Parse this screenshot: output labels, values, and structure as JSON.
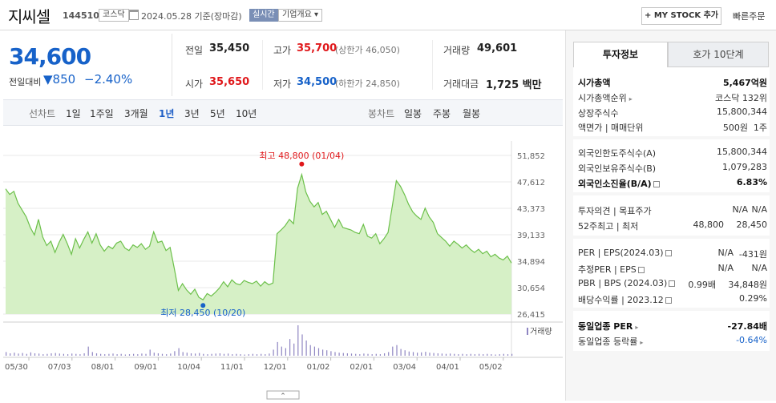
{
  "header": {
    "company_name": "지씨셀",
    "code": "144510",
    "market": "코스닥",
    "date_text": "2024.05.28 기준(장마감)",
    "live_label": "실시간",
    "overview_label": "기업개요 ▾",
    "mystock_label": "+ MY STOCK 추가",
    "quick_order_label": "빠른주문"
  },
  "price": {
    "current": "34,600",
    "change_label": "전일대비",
    "change_value": "▼850",
    "change_pct": "−2.40%",
    "down_color": "#1762c9",
    "up_color": "#e0181b"
  },
  "quote": {
    "prev_close_label": "전일",
    "prev_close": "35,450",
    "high_label": "고가",
    "high": "35,700",
    "high_limit": "(상한가 46,050)",
    "volume_label": "거래량",
    "volume": "49,601",
    "open_label": "시가",
    "open": "35,650",
    "low_label": "저가",
    "low": "34,500",
    "low_limit": "(하한가 24,850)",
    "trade_value_label": "거래대금",
    "trade_value": "1,725 백만"
  },
  "tabs": {
    "line_label": "선차트",
    "periods": [
      "1일",
      "1주일",
      "3개월",
      "1년",
      "3년",
      "5년",
      "10년"
    ],
    "active_period": "1년",
    "candle_label": "봉차트",
    "candles": [
      "일봉",
      "주봉",
      "월봉"
    ]
  },
  "chart_data": {
    "type": "area",
    "x_ticks": [
      "05/30",
      "07/03",
      "08/01",
      "09/01",
      "10/04",
      "11/01",
      "12/01",
      "01/02",
      "02/01",
      "03/04",
      "04/01",
      "05/02"
    ],
    "y_ticks": [
      51852,
      47612,
      43373,
      39133,
      34894,
      30654,
      26415
    ],
    "ylim": [
      26415,
      51852
    ],
    "high_note": "최고 48,800 (01/04)",
    "low_note": "최저 28,450 (10/20)",
    "volume_label": "거래량",
    "values": [
      46500,
      45600,
      46100,
      44200,
      43100,
      42000,
      40300,
      39100,
      41600,
      38800,
      37400,
      38100,
      36300,
      37900,
      39200,
      37700,
      36000,
      38500,
      37000,
      38400,
      39600,
      37800,
      39300,
      37500,
      36500,
      37300,
      36900,
      37800,
      38100,
      37000,
      36600,
      37500,
      37100,
      37700,
      36800,
      37300,
      39600,
      37900,
      38100,
      36600,
      37100,
      33800,
      30200,
      31300,
      30300,
      29600,
      30400,
      29100,
      28700,
      29700,
      29300,
      29900,
      30600,
      31600,
      30800,
      31900,
      31300,
      31100,
      31800,
      31500,
      31300,
      31700,
      30900,
      31600,
      31100,
      31400,
      39300,
      39900,
      40600,
      41600,
      40900,
      46600,
      48800,
      46000,
      44500,
      43600,
      44300,
      42400,
      42900,
      41600,
      40300,
      41600,
      40300,
      40100,
      39900,
      39500,
      39300,
      40800,
      38900,
      38600,
      39300,
      37700,
      38500,
      39500,
      43600,
      47800,
      46900,
      45600,
      44000,
      42800,
      42100,
      41600,
      43400,
      42000,
      41100,
      39300,
      38700,
      38100,
      37300,
      38100,
      37600,
      37000,
      37500,
      36800,
      36300,
      36800,
      36100,
      36500,
      35600,
      36000,
      35400,
      35100,
      35700,
      34600
    ],
    "volumes": [
      0.12,
      0.08,
      0.1,
      0.07,
      0.09,
      0.06,
      0.11,
      0.08,
      0.07,
      0.05,
      0.06,
      0.08,
      0.09,
      0.07,
      0.06,
      0.05,
      0.07,
      0.06,
      0.05,
      0.08,
      0.3,
      0.12,
      0.08,
      0.06,
      0.05,
      0.06,
      0.07,
      0.05,
      0.06,
      0.04,
      0.05,
      0.06,
      0.05,
      0.07,
      0.06,
      0.2,
      0.1,
      0.08,
      0.06,
      0.05,
      0.07,
      0.15,
      0.25,
      0.12,
      0.1,
      0.08,
      0.07,
      0.09,
      0.06,
      0.05,
      0.06,
      0.07,
      0.08,
      0.06,
      0.07,
      0.05,
      0.06,
      0.05,
      0.04,
      0.05,
      0.06,
      0.05,
      0.06,
      0.05,
      0.07,
      0.2,
      0.45,
      0.3,
      0.25,
      0.55,
      0.4,
      1.0,
      0.7,
      0.5,
      0.35,
      0.3,
      0.25,
      0.2,
      0.18,
      0.15,
      0.12,
      0.1,
      0.09,
      0.08,
      0.07,
      0.06,
      0.05,
      0.07,
      0.06,
      0.05,
      0.06,
      0.05,
      0.08,
      0.12,
      0.3,
      0.35,
      0.22,
      0.18,
      0.14,
      0.12,
      0.1,
      0.11,
      0.13,
      0.1,
      0.09,
      0.08,
      0.07,
      0.06,
      0.07,
      0.06,
      0.05,
      0.06,
      0.05,
      0.06,
      0.05,
      0.06,
      0.05,
      0.06,
      0.05,
      0.04,
      0.05,
      0.06,
      0.05,
      0.06
    ],
    "line_color": "#6cc04a",
    "fill_color": "#d6f0c6",
    "volume_color": "#8f86c2"
  },
  "invest": {
    "tab_active": "투자정보",
    "tab_other": "호가 10단계",
    "market_cap_label": "시가총액",
    "market_cap": "5,467억원",
    "cap_rank_label": "시가총액순위",
    "cap_rank": "코스닥 132위",
    "shares_label": "상장주식수",
    "shares": "15,800,344",
    "face_label": "액면가 | 매매단위",
    "face": "500원",
    "unit": "1주",
    "foreign_limit_label": "외국인한도주식수(A)",
    "foreign_limit": "15,800,344",
    "foreign_hold_label": "외국인보유주식수(B)",
    "foreign_hold": "1,079,283",
    "foreign_ratio_label": "외국인소진율(B/A)",
    "foreign_ratio": "6.83%",
    "opinion_label": "투자의견 | 목표주가",
    "opinion": "N/A",
    "target": "N/A",
    "w52_label": "52주최고 | 최저",
    "w52_high": "48,800",
    "w52_low": "28,450",
    "per_label": "PER | EPS(2024.03)",
    "per": "N/A",
    "eps": "-431원",
    "est_label": "추정PER | EPS",
    "est_per": "N/A",
    "est_eps": "N/A",
    "pbr_label": "PBR | BPS (2024.03)",
    "pbr": "0.99배",
    "bps": "34,848원",
    "div_label": "배당수익률 | 2023.12",
    "div": "0.29%",
    "ind_per_label": "동일업종 PER",
    "ind_per": "-27.84배",
    "ind_rate_label": "동일업종 등락률",
    "ind_rate": "-0.64%"
  }
}
